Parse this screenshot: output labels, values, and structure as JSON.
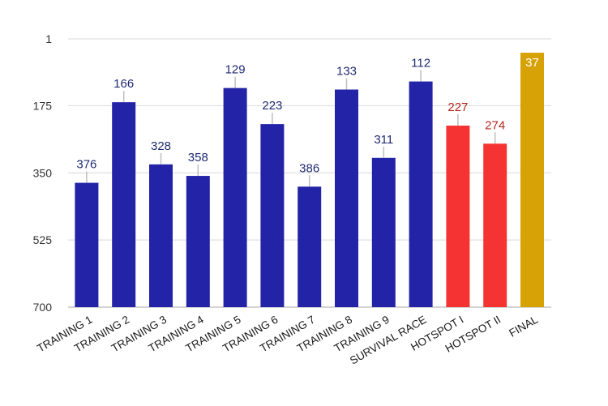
{
  "chart_data": {
    "type": "bar",
    "title": "",
    "xlabel": "",
    "ylabel": "",
    "y_axis_inverted": true,
    "ylim": [
      700,
      1
    ],
    "yticks": [
      1,
      175,
      350,
      525,
      700
    ],
    "grid": true,
    "legend": "none",
    "categories": [
      "TRAINING 1",
      "TRAINING 2",
      "TRAINING 3",
      "TRAINING 4",
      "TRAINING 5",
      "TRAINING 6",
      "TRAINING 7",
      "TRAINING 8",
      "TRAINING 9",
      "SURVIVAL RACE",
      "HOTSPOT I",
      "HOTSPOT II",
      "FINAL"
    ],
    "values": [
      376,
      166,
      328,
      358,
      129,
      223,
      386,
      133,
      311,
      112,
      227,
      274,
      37
    ],
    "bar_colors": [
      "#2323a8",
      "#2323a8",
      "#2323a8",
      "#2323a8",
      "#2323a8",
      "#2323a8",
      "#2323a8",
      "#2323a8",
      "#2323a8",
      "#2323a8",
      "#f53333",
      "#f53333",
      "#d6a206"
    ],
    "label_colors": [
      "#1f2a72",
      "#1f2a72",
      "#1f2a72",
      "#1f2a72",
      "#1f2a72",
      "#1f2a72",
      "#1f2a72",
      "#1f2a72",
      "#1f2a72",
      "#1f2a72",
      "#b3261e",
      "#b3261e",
      "#ffffff"
    ],
    "label_inside_bar": [
      false,
      false,
      false,
      false,
      false,
      false,
      false,
      false,
      false,
      false,
      false,
      false,
      true
    ]
  }
}
